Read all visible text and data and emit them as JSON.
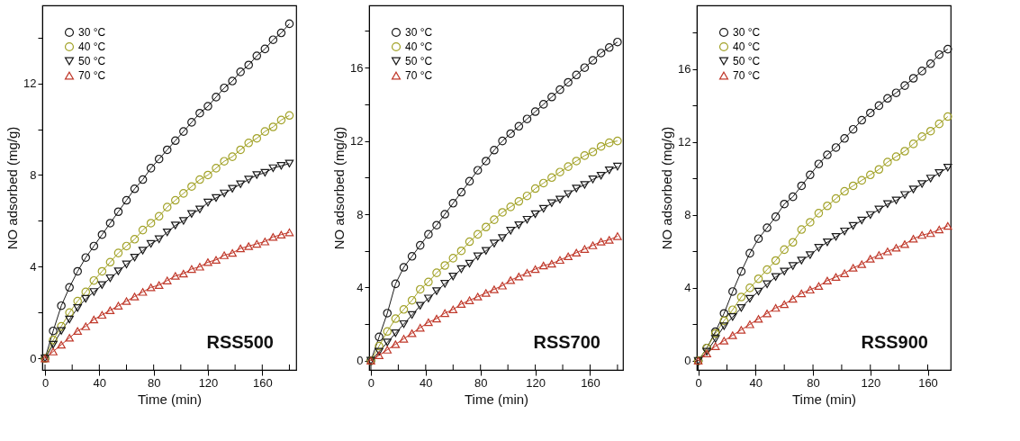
{
  "chart_data": [
    {
      "type": "line",
      "annotations": [
        "RSS500"
      ],
      "xlabel": "Time (min)",
      "ylabel": "NO adsorbed (mg/g)",
      "legend": "top left",
      "grid": false,
      "x": [
        0,
        6,
        12,
        18,
        24,
        30,
        36,
        42,
        48,
        54,
        60,
        66,
        72,
        78,
        84,
        90,
        96,
        102,
        108,
        114,
        120,
        126,
        132,
        138,
        144,
        150,
        156,
        162,
        168,
        174,
        180
      ],
      "xlim": [
        -2,
        185
      ],
      "xticks": [
        0,
        {
          "value": 20,
          "label": null
        },
        40,
        {
          "value": 60,
          "label": null
        },
        80,
        {
          "value": 100,
          "label": null
        },
        120,
        {
          "value": 140,
          "label": null
        },
        160,
        {
          "value": 180,
          "label": null
        }
      ],
      "ylim": [
        -0.5,
        15.4
      ],
      "yticks": [
        0,
        {
          "value": 2,
          "label": null
        },
        4,
        {
          "value": 6,
          "label": null
        },
        8,
        {
          "value": 10,
          "label": null
        },
        12,
        {
          "value": 14,
          "label": null
        }
      ],
      "series": [
        {
          "name": "30 °C",
          "color": "#1a1a1a",
          "marker": "circle",
          "values": [
            0,
            1.2,
            2.3,
            3.1,
            3.8,
            4.4,
            4.9,
            5.4,
            5.9,
            6.4,
            6.9,
            7.4,
            7.8,
            8.3,
            8.7,
            9.1,
            9.5,
            9.9,
            10.3,
            10.7,
            11.0,
            11.4,
            11.8,
            12.1,
            12.5,
            12.8,
            13.2,
            13.5,
            13.9,
            14.2,
            14.6
          ]
        },
        {
          "name": "40 °C",
          "color": "#a3a32a",
          "marker": "circle",
          "values": [
            0,
            0.8,
            1.4,
            2.0,
            2.5,
            2.9,
            3.4,
            3.8,
            4.2,
            4.6,
            4.9,
            5.2,
            5.6,
            5.9,
            6.2,
            6.6,
            6.9,
            7.2,
            7.5,
            7.8,
            8.0,
            8.3,
            8.6,
            8.8,
            9.1,
            9.4,
            9.6,
            9.9,
            10.1,
            10.4,
            10.6
          ]
        },
        {
          "name": "50 °C",
          "color": "#1a1a1a",
          "marker": "triangle-down",
          "values": [
            0,
            0.6,
            1.2,
            1.7,
            2.2,
            2.6,
            2.9,
            3.2,
            3.5,
            3.8,
            4.1,
            4.4,
            4.7,
            5.0,
            5.2,
            5.5,
            5.8,
            6.0,
            6.3,
            6.5,
            6.8,
            7.0,
            7.2,
            7.4,
            7.6,
            7.8,
            8.0,
            8.1,
            8.3,
            8.4,
            8.5
          ]
        },
        {
          "name": "70 °C",
          "color": "#c0392b",
          "marker": "triangle-up",
          "values": [
            0,
            0.3,
            0.6,
            0.9,
            1.2,
            1.4,
            1.7,
            1.9,
            2.1,
            2.3,
            2.5,
            2.7,
            2.9,
            3.1,
            3.2,
            3.4,
            3.6,
            3.7,
            3.9,
            4.0,
            4.2,
            4.3,
            4.5,
            4.6,
            4.8,
            4.9,
            5.0,
            5.1,
            5.3,
            5.4,
            5.5
          ]
        }
      ]
    },
    {
      "type": "line",
      "annotations": [
        "RSS700"
      ],
      "xlabel": "Time (min)",
      "ylabel": "NO adsorbed (mg/g)",
      "legend": "top left",
      "grid": false,
      "x": [
        0,
        6,
        12,
        18,
        24,
        30,
        36,
        42,
        48,
        54,
        60,
        66,
        72,
        78,
        84,
        90,
        96,
        102,
        108,
        114,
        120,
        126,
        132,
        138,
        144,
        150,
        156,
        162,
        168,
        174,
        180
      ],
      "xlim": [
        -1.3,
        184
      ],
      "xticks": [
        0,
        {
          "value": 20,
          "label": null
        },
        40,
        {
          "value": 60,
          "label": null
        },
        80,
        {
          "value": 100,
          "label": null
        },
        120,
        {
          "value": 140,
          "label": null
        },
        160,
        {
          "value": 180,
          "label": null
        }
      ],
      "ylim": [
        -0.5,
        19.4
      ],
      "yticks": [
        0,
        {
          "value": 2,
          "label": null
        },
        4,
        {
          "value": 6,
          "label": null
        },
        8,
        {
          "value": 10,
          "label": null
        },
        12,
        {
          "value": 14,
          "label": null
        },
        16,
        {
          "value": 18,
          "label": null
        }
      ],
      "series": [
        {
          "name": "30 °C",
          "color": "#1a1a1a",
          "marker": "circle",
          "values": [
            0,
            1.3,
            2.6,
            4.2,
            5.1,
            5.7,
            6.3,
            6.9,
            7.4,
            8.0,
            8.6,
            9.2,
            9.8,
            10.4,
            10.9,
            11.5,
            12.0,
            12.4,
            12.8,
            13.2,
            13.6,
            14.0,
            14.4,
            14.8,
            15.2,
            15.6,
            16.0,
            16.4,
            16.8,
            17.1,
            17.4
          ]
        },
        {
          "name": "40 °C",
          "color": "#a3a32a",
          "marker": "circle",
          "values": [
            0,
            0.8,
            1.6,
            2.3,
            2.8,
            3.3,
            3.9,
            4.3,
            4.8,
            5.2,
            5.6,
            6.0,
            6.5,
            6.9,
            7.3,
            7.7,
            8.1,
            8.4,
            8.7,
            9.0,
            9.4,
            9.7,
            10.0,
            10.3,
            10.6,
            10.9,
            11.2,
            11.4,
            11.7,
            11.9,
            12.0
          ]
        },
        {
          "name": "50 °C",
          "color": "#1a1a1a",
          "marker": "triangle-down",
          "values": [
            0,
            0.5,
            1.0,
            1.5,
            2.0,
            2.5,
            3.0,
            3.4,
            3.8,
            4.2,
            4.6,
            5.0,
            5.3,
            5.7,
            6.0,
            6.4,
            6.7,
            7.1,
            7.4,
            7.7,
            8.0,
            8.3,
            8.6,
            8.8,
            9.1,
            9.4,
            9.6,
            9.9,
            10.1,
            10.4,
            10.6
          ]
        },
        {
          "name": "70 °C",
          "color": "#c0392b",
          "marker": "triangle-up",
          "values": [
            0,
            0.3,
            0.6,
            0.9,
            1.2,
            1.5,
            1.8,
            2.1,
            2.3,
            2.6,
            2.8,
            3.1,
            3.3,
            3.5,
            3.7,
            3.9,
            4.1,
            4.4,
            4.6,
            4.8,
            5.0,
            5.2,
            5.3,
            5.5,
            5.7,
            5.9,
            6.1,
            6.3,
            6.5,
            6.6,
            6.8
          ]
        }
      ]
    },
    {
      "type": "line",
      "annotations": [
        "RSS900"
      ],
      "xlabel": "Time (min)",
      "ylabel": "NO adsorbed (mg/g)",
      "legend": "top left",
      "grid": false,
      "x": [
        0,
        6,
        12,
        18,
        24,
        30,
        36,
        42,
        48,
        54,
        60,
        66,
        72,
        78,
        84,
        90,
        96,
        102,
        108,
        114,
        120,
        126,
        132,
        138,
        144,
        150,
        156,
        162,
        168,
        174
      ],
      "xlim": [
        -1,
        176
      ],
      "xticks": [
        0,
        {
          "value": 20,
          "label": null
        },
        40,
        {
          "value": 60,
          "label": null
        },
        80,
        {
          "value": 100,
          "label": null
        },
        120,
        {
          "value": 140,
          "label": null
        },
        160
      ],
      "ylim": [
        -0.5,
        19.5
      ],
      "yticks": [
        0,
        {
          "value": 2,
          "label": null
        },
        4,
        {
          "value": 6,
          "label": null
        },
        8,
        {
          "value": 10,
          "label": null
        },
        12,
        {
          "value": 14,
          "label": null
        },
        16,
        {
          "value": 18,
          "label": null
        }
      ],
      "series": [
        {
          "name": "30 °C",
          "color": "#1a1a1a",
          "marker": "circle",
          "values": [
            0,
            0.7,
            1.6,
            2.6,
            3.8,
            4.9,
            5.9,
            6.7,
            7.3,
            7.9,
            8.6,
            9.0,
            9.6,
            10.2,
            10.8,
            11.3,
            11.7,
            12.2,
            12.7,
            13.2,
            13.6,
            14.0,
            14.4,
            14.7,
            15.1,
            15.5,
            15.9,
            16.3,
            16.8,
            17.1
          ]
        },
        {
          "name": "40 °C",
          "color": "#a3a32a",
          "marker": "circle",
          "values": [
            0,
            0.7,
            1.5,
            2.2,
            2.8,
            3.5,
            4.0,
            4.5,
            5.0,
            5.5,
            6.1,
            6.5,
            7.2,
            7.6,
            8.1,
            8.5,
            8.9,
            9.3,
            9.6,
            9.9,
            10.2,
            10.5,
            10.9,
            11.2,
            11.5,
            11.9,
            12.3,
            12.6,
            13.0,
            13.4
          ]
        },
        {
          "name": "50 °C",
          "color": "#1a1a1a",
          "marker": "triangle-down",
          "values": [
            0,
            0.5,
            1.2,
            1.9,
            2.4,
            2.9,
            3.4,
            3.8,
            4.2,
            4.6,
            4.9,
            5.2,
            5.5,
            5.8,
            6.2,
            6.5,
            6.8,
            7.1,
            7.4,
            7.7,
            8.0,
            8.3,
            8.6,
            8.8,
            9.1,
            9.4,
            9.7,
            10.0,
            10.3,
            10.6
          ]
        },
        {
          "name": "70 °C",
          "color": "#c0392b",
          "marker": "triangle-up",
          "values": [
            0,
            0.4,
            0.8,
            1.1,
            1.4,
            1.7,
            2.0,
            2.3,
            2.6,
            2.9,
            3.1,
            3.4,
            3.7,
            3.9,
            4.1,
            4.4,
            4.6,
            4.8,
            5.1,
            5.3,
            5.6,
            5.8,
            6.0,
            6.2,
            6.4,
            6.7,
            6.9,
            7.0,
            7.2,
            7.4
          ]
        }
      ]
    }
  ]
}
